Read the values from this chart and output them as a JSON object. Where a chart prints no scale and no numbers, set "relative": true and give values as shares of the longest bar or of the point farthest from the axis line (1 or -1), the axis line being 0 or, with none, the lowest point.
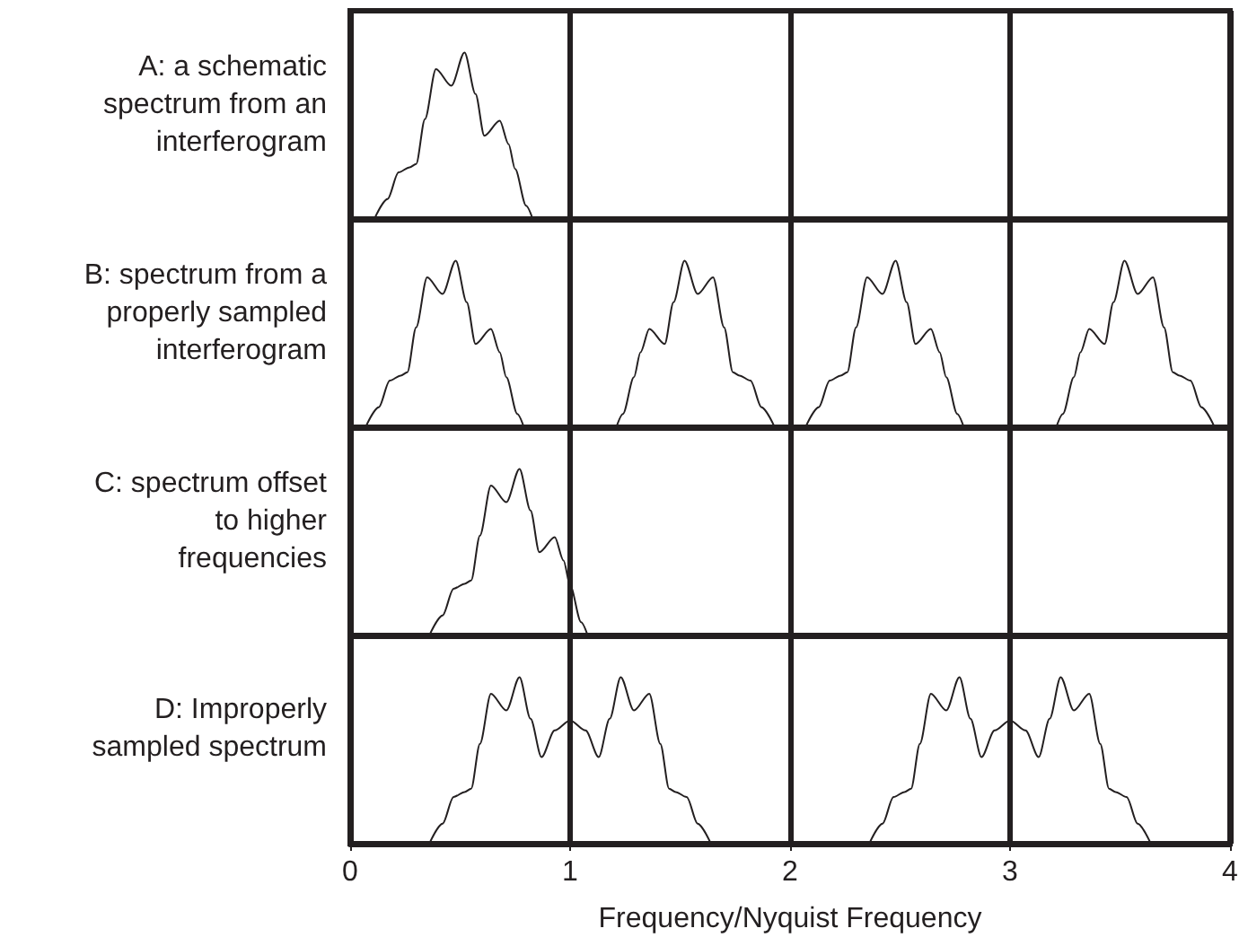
{
  "chart_data": [
    {
      "type": "line",
      "ylabel": "A: a schematic spectrum from an interferogram",
      "relative": true,
      "xlim": [
        0,
        4
      ],
      "xticks": [
        0,
        1,
        2,
        3,
        4
      ],
      "grid": "x",
      "tick_labels": false,
      "marker": "none",
      "line_style": "solid",
      "series": [
        {
          "color": "#231f20",
          "x": [
            0.11,
            0.17,
            0.22,
            0.27,
            0.3,
            0.34,
            0.39,
            0.46,
            0.52,
            0.57,
            0.61,
            0.68,
            0.72,
            0.75,
            0.8,
            0.83
          ],
          "values": [
            0,
            0.12,
            0.28,
            0.31,
            0.33,
            0.6,
            0.9,
            0.8,
            1.0,
            0.75,
            0.5,
            0.59,
            0.45,
            0.3,
            0.08,
            0
          ]
        }
      ]
    },
    {
      "type": "line",
      "ylabel": "B: spectrum from a properly sampled interferogram",
      "relative": true,
      "xlim": [
        0,
        4
      ],
      "xticks": [
        0,
        1,
        2,
        3,
        4
      ],
      "grid": "x",
      "tick_labels": false,
      "marker": "none",
      "line_style": "solid",
      "series": [
        {
          "color": "#231f20",
          "x": [
            0.07,
            0.13,
            0.18,
            0.23,
            0.26,
            0.3,
            0.35,
            0.42,
            0.48,
            0.53,
            0.57,
            0.64,
            0.68,
            0.71,
            0.76,
            0.79
          ],
          "values": [
            0,
            0.12,
            0.28,
            0.31,
            0.33,
            0.6,
            0.9,
            0.8,
            1.0,
            0.75,
            0.5,
            0.59,
            0.45,
            0.3,
            0.08,
            0
          ]
        },
        {
          "color": "#231f20",
          "x": [
            1.21,
            1.24,
            1.29,
            1.32,
            1.36,
            1.43,
            1.47,
            1.52,
            1.58,
            1.65,
            1.7,
            1.74,
            1.77,
            1.82,
            1.87,
            1.93
          ],
          "values": [
            0,
            0.08,
            0.3,
            0.45,
            0.59,
            0.5,
            0.75,
            1.0,
            0.8,
            0.9,
            0.6,
            0.33,
            0.31,
            0.28,
            0.12,
            0
          ]
        },
        {
          "color": "#231f20",
          "x": [
            2.07,
            2.13,
            2.18,
            2.23,
            2.26,
            2.3,
            2.35,
            2.42,
            2.48,
            2.53,
            2.57,
            2.64,
            2.68,
            2.71,
            2.76,
            2.79
          ],
          "values": [
            0,
            0.12,
            0.28,
            0.31,
            0.33,
            0.6,
            0.9,
            0.8,
            1.0,
            0.75,
            0.5,
            0.59,
            0.45,
            0.3,
            0.08,
            0
          ]
        },
        {
          "color": "#231f20",
          "x": [
            3.21,
            3.24,
            3.29,
            3.32,
            3.36,
            3.43,
            3.47,
            3.52,
            3.58,
            3.65,
            3.7,
            3.74,
            3.77,
            3.82,
            3.87,
            3.93
          ],
          "values": [
            0,
            0.08,
            0.3,
            0.45,
            0.59,
            0.5,
            0.75,
            1.0,
            0.8,
            0.9,
            0.6,
            0.33,
            0.31,
            0.28,
            0.12,
            0
          ]
        }
      ]
    },
    {
      "type": "line",
      "ylabel": "C: spectrum offset to higher frequencies",
      "relative": true,
      "xlim": [
        0,
        4
      ],
      "xticks": [
        0,
        1,
        2,
        3,
        4
      ],
      "grid": "x",
      "tick_labels": false,
      "marker": "none",
      "line_style": "solid",
      "series": [
        {
          "color": "#231f20",
          "x": [
            0.36,
            0.42,
            0.47,
            0.52,
            0.55,
            0.59,
            0.64,
            0.71,
            0.77,
            0.82,
            0.86,
            0.93,
            0.97,
            1.0,
            1.05,
            1.08
          ],
          "values": [
            0,
            0.12,
            0.28,
            0.31,
            0.33,
            0.6,
            0.9,
            0.8,
            1.0,
            0.75,
            0.5,
            0.59,
            0.45,
            0.3,
            0.08,
            0
          ]
        }
      ]
    },
    {
      "type": "line",
      "ylabel": "D: Improperly sampled spectrum",
      "xlabel": "Frequency/Nyquist Frequency",
      "relative": true,
      "xlim": [
        0,
        4
      ],
      "xticks": [
        0,
        1,
        2,
        3,
        4
      ],
      "grid": "x",
      "tick_labels": "x",
      "marker": "none",
      "line_style": "solid",
      "series": [
        {
          "color": "#231f20",
          "x": [
            0.36,
            0.42,
            0.47,
            0.52,
            0.55,
            0.59,
            0.64,
            0.71,
            0.77,
            0.82,
            0.87,
            0.93,
            1.0,
            1.07,
            1.13,
            1.18,
            1.23,
            1.29,
            1.36,
            1.41,
            1.45,
            1.48,
            1.53,
            1.58,
            1.64
          ],
          "values": [
            0,
            0.12,
            0.28,
            0.31,
            0.33,
            0.6,
            0.9,
            0.8,
            1.0,
            0.75,
            0.52,
            0.68,
            0.74,
            0.68,
            0.52,
            0.75,
            1.0,
            0.8,
            0.9,
            0.6,
            0.33,
            0.31,
            0.28,
            0.12,
            0
          ]
        },
        {
          "color": "#231f20",
          "x": [
            2.36,
            2.42,
            2.47,
            2.52,
            2.55,
            2.59,
            2.64,
            2.71,
            2.77,
            2.82,
            2.87,
            2.93,
            3.0,
            3.07,
            3.13,
            3.18,
            3.23,
            3.29,
            3.36,
            3.41,
            3.45,
            3.48,
            3.53,
            3.58,
            3.64
          ],
          "values": [
            0,
            0.12,
            0.28,
            0.31,
            0.33,
            0.6,
            0.9,
            0.8,
            1.0,
            0.75,
            0.52,
            0.68,
            0.74,
            0.68,
            0.52,
            0.75,
            1.0,
            0.8,
            0.9,
            0.6,
            0.33,
            0.31,
            0.28,
            0.12,
            0
          ]
        }
      ]
    }
  ]
}
